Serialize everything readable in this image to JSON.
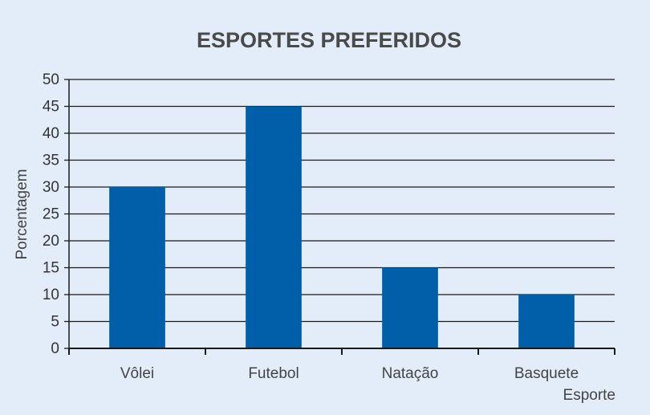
{
  "chart_data": {
    "type": "bar",
    "title": "ESPORTES PREFERIDOS",
    "xlabel": "Esporte",
    "ylabel": "Porcentagem",
    "categories": [
      "Vôlei",
      "Futebol",
      "Natação",
      "Basquete"
    ],
    "values": [
      30,
      45,
      15,
      10
    ],
    "ylim": [
      0,
      50
    ],
    "yticks": [
      "0",
      "5",
      "10",
      "15",
      "20",
      "25",
      "30",
      "35",
      "40",
      "45",
      "50"
    ],
    "grid": true,
    "bar_color": "#005fa8"
  }
}
